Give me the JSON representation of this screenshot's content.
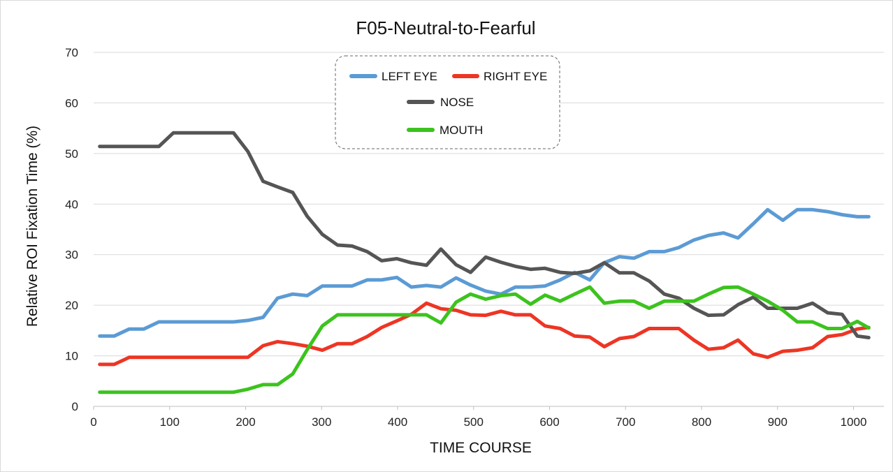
{
  "chart_data": {
    "type": "line",
    "title": "F05-Neutral-to-Fearful",
    "xlabel": "TIME  COURSE",
    "ylabel": "Relative  ROI  Fixation  Time  (%)",
    "xlim": [
      0,
      1040
    ],
    "ylim": [
      0,
      70
    ],
    "x_ticks": [
      0,
      100,
      200,
      300,
      400,
      500,
      600,
      700,
      800,
      900,
      1000
    ],
    "y_ticks": [
      0,
      10,
      20,
      30,
      40,
      50,
      60,
      70
    ],
    "grid": "horizontal",
    "legend_position": "top-center",
    "x": [
      8,
      27,
      47,
      66,
      86,
      105,
      125,
      144,
      164,
      184,
      203,
      223,
      242,
      262,
      281,
      301,
      321,
      340,
      360,
      379,
      399,
      418,
      438,
      457,
      477,
      496,
      516,
      536,
      555,
      575,
      594,
      614,
      633,
      653,
      672,
      692,
      711,
      731,
      751,
      770,
      790,
      809,
      829,
      848,
      868,
      887,
      907,
      926,
      946,
      966,
      985,
      1005,
      1020
    ],
    "series": [
      {
        "name": "LEFT EYE",
        "color": "#5b9bd5",
        "values": [
          13.9,
          13.9,
          15.3,
          15.3,
          16.7,
          16.7,
          16.7,
          16.7,
          16.7,
          16.7,
          17.0,
          17.6,
          21.4,
          22.2,
          21.9,
          23.8,
          23.8,
          23.8,
          25.0,
          25.0,
          25.5,
          23.6,
          23.9,
          23.6,
          25.4,
          24.0,
          22.8,
          22.2,
          23.6,
          23.6,
          23.8,
          25.0,
          26.5,
          25.0,
          28.4,
          29.6,
          29.3,
          30.6,
          30.6,
          31.4,
          32.9,
          33.8,
          34.3,
          33.3,
          36.1,
          38.9,
          36.8,
          38.9,
          38.9,
          38.5,
          37.9,
          37.5,
          37.5
        ]
      },
      {
        "name": "RIGHT EYE",
        "color": "#ee3524",
        "values": [
          8.3,
          8.3,
          9.7,
          9.7,
          9.7,
          9.7,
          9.7,
          9.7,
          9.7,
          9.7,
          9.7,
          12.0,
          12.8,
          12.4,
          11.9,
          11.1,
          12.4,
          12.4,
          13.8,
          15.6,
          16.9,
          18.2,
          20.4,
          19.3,
          19.0,
          18.1,
          18.0,
          18.8,
          18.1,
          18.1,
          15.9,
          15.4,
          13.9,
          13.7,
          11.8,
          13.4,
          13.8,
          15.4,
          15.4,
          15.4,
          13.1,
          11.3,
          11.6,
          13.1,
          10.4,
          9.7,
          10.9,
          11.1,
          11.6,
          13.8,
          14.2,
          15.3,
          15.6
        ]
      },
      {
        "name": "NOSE",
        "color": "#555555",
        "values": [
          51.4,
          51.4,
          51.4,
          51.4,
          51.4,
          54.1,
          54.1,
          54.1,
          54.1,
          54.1,
          50.4,
          44.5,
          43.4,
          42.3,
          37.6,
          34.0,
          31.9,
          31.7,
          30.6,
          28.8,
          29.2,
          28.4,
          27.9,
          31.1,
          28.0,
          26.5,
          29.5,
          28.5,
          27.7,
          27.1,
          27.3,
          26.5,
          26.3,
          26.8,
          28.4,
          26.4,
          26.4,
          24.8,
          22.2,
          21.4,
          19.4,
          18.0,
          18.1,
          20.1,
          21.6,
          19.4,
          19.4,
          19.4,
          20.4,
          18.5,
          18.2,
          13.9,
          13.6
        ]
      },
      {
        "name": "MOUTH",
        "color": "#3cc31e",
        "values": [
          2.8,
          2.8,
          2.8,
          2.8,
          2.8,
          2.8,
          2.8,
          2.8,
          2.8,
          2.8,
          3.4,
          4.3,
          4.3,
          6.4,
          11.2,
          15.9,
          18.1,
          18.1,
          18.1,
          18.1,
          18.1,
          18.1,
          18.1,
          16.5,
          20.6,
          22.2,
          21.2,
          21.9,
          22.2,
          20.2,
          22.0,
          20.8,
          22.2,
          23.6,
          20.4,
          20.8,
          20.8,
          19.4,
          20.8,
          20.8,
          20.8,
          22.2,
          23.5,
          23.6,
          22.2,
          20.8,
          19.0,
          16.7,
          16.7,
          15.4,
          15.4,
          16.8,
          15.5
        ]
      }
    ]
  }
}
